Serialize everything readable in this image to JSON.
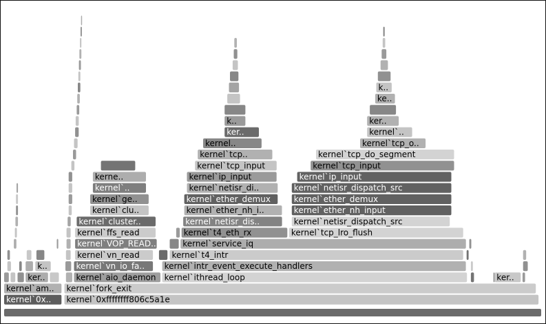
{
  "chart_data": {
    "type": "flamegraph",
    "title": "",
    "xlabel": "",
    "ylabel": "",
    "x_unit": "fraction of total samples",
    "levels": 27,
    "frames": [
      {
        "label": "",
        "start": 0.0,
        "end": 1.0,
        "level": 0,
        "tone": 0.35
      },
      {
        "label": "kernel`0x..",
        "start": 0.0,
        "end": 0.108,
        "level": 1,
        "tone": 0.28
      },
      {
        "label": "kernel`0xffffffff806c5a1e",
        "start": 0.112,
        "end": 0.995,
        "level": 1,
        "tone": 0.82
      },
      {
        "label": "kernel`am..",
        "start": 0.0,
        "end": 0.108,
        "level": 2,
        "tone": 0.72
      },
      {
        "label": "kernel`fork_exit",
        "start": 0.112,
        "end": 0.99,
        "level": 2,
        "tone": 0.86
      },
      {
        "label": "",
        "start": 0.0,
        "end": 0.01,
        "level": 3,
        "tone": 0.6
      },
      {
        "label": "",
        "start": 0.012,
        "end": 0.022,
        "level": 3,
        "tone": 0.82
      },
      {
        "label": "",
        "start": 0.025,
        "end": 0.038,
        "level": 3,
        "tone": 0.55
      },
      {
        "label": "ker..",
        "start": 0.04,
        "end": 0.083,
        "level": 3,
        "tone": 0.7
      },
      {
        "label": "",
        "start": 0.085,
        "end": 0.103,
        "level": 3,
        "tone": 0.84
      },
      {
        "label": "",
        "start": 0.115,
        "end": 0.128,
        "level": 3,
        "tone": 0.72
      },
      {
        "label": "kernel`aio_daemon",
        "start": 0.13,
        "end": 0.292,
        "level": 3,
        "tone": 0.62
      },
      {
        "label": "kernel`ithread_loop",
        "start": 0.294,
        "end": 0.862,
        "level": 3,
        "tone": 0.9
      },
      {
        "label": "",
        "start": 0.868,
        "end": 0.875,
        "level": 3,
        "tone": 0.4
      },
      {
        "label": "",
        "start": 0.91,
        "end": 0.912,
        "level": 3,
        "tone": 0.5
      },
      {
        "label": "ker..",
        "start": 0.912,
        "end": 0.962,
        "level": 3,
        "tone": 0.84
      },
      {
        "label": "",
        "start": 0.964,
        "end": 0.97,
        "level": 3,
        "tone": 0.6
      },
      {
        "label": "",
        "start": 0.006,
        "end": 0.014,
        "level": 4,
        "tone": 0.82
      },
      {
        "label": "",
        "start": 0.028,
        "end": 0.034,
        "level": 4,
        "tone": 0.5
      },
      {
        "label": "",
        "start": 0.04,
        "end": 0.055,
        "level": 4,
        "tone": 0.7
      },
      {
        "label": "k..",
        "start": 0.058,
        "end": 0.088,
        "level": 4,
        "tone": 0.82
      },
      {
        "label": "",
        "start": 0.114,
        "end": 0.126,
        "level": 4,
        "tone": 0.6
      },
      {
        "label": "kernel`vn_io_fa..",
        "start": 0.13,
        "end": 0.278,
        "level": 4,
        "tone": 0.42
      },
      {
        "label": "kernel`intr_event_execute_handlers",
        "start": 0.294,
        "end": 0.86,
        "level": 4,
        "tone": 0.72
      },
      {
        "label": "",
        "start": 0.868,
        "end": 0.873,
        "level": 4,
        "tone": 0.85
      },
      {
        "label": "",
        "start": 0.965,
        "end": 0.975,
        "level": 4,
        "tone": 0.55
      },
      {
        "label": "",
        "start": 0.006,
        "end": 0.012,
        "level": 5,
        "tone": 0.55
      },
      {
        "label": "",
        "start": 0.042,
        "end": 0.052,
        "level": 5,
        "tone": 0.84
      },
      {
        "label": "",
        "start": 0.06,
        "end": 0.076,
        "level": 5,
        "tone": 0.5
      },
      {
        "label": "",
        "start": 0.115,
        "end": 0.125,
        "level": 5,
        "tone": 0.82
      },
      {
        "label": "kernel`vn_read",
        "start": 0.132,
        "end": 0.278,
        "level": 5,
        "tone": 0.86
      },
      {
        "label": "",
        "start": 0.288,
        "end": 0.305,
        "level": 5,
        "tone": 0.35
      },
      {
        "label": "kernel`t4_intr",
        "start": 0.308,
        "end": 0.855,
        "level": 5,
        "tone": 0.86
      },
      {
        "label": "",
        "start": 0.86,
        "end": 0.865,
        "level": 5,
        "tone": 0.4
      },
      {
        "label": "",
        "start": 0.965,
        "end": 0.972,
        "level": 5,
        "tone": 0.72
      },
      {
        "label": "",
        "start": 0.018,
        "end": 0.024,
        "level": 6,
        "tone": 0.7
      },
      {
        "label": "",
        "start": 0.098,
        "end": 0.102,
        "level": 6,
        "tone": 0.6
      },
      {
        "label": "",
        "start": 0.116,
        "end": 0.125,
        "level": 6,
        "tone": 0.72
      },
      {
        "label": "kernel`VOP_READ..",
        "start": 0.132,
        "end": 0.285,
        "level": 6,
        "tone": 0.46
      },
      {
        "label": "",
        "start": 0.308,
        "end": 0.326,
        "level": 6,
        "tone": 0.5
      },
      {
        "label": "kernel`service_iq",
        "start": 0.328,
        "end": 0.86,
        "level": 6,
        "tone": 0.7
      },
      {
        "label": "",
        "start": 0.865,
        "end": 0.87,
        "level": 6,
        "tone": 0.55
      },
      {
        "label": "",
        "start": 0.02,
        "end": 0.025,
        "level": 7,
        "tone": 0.82
      },
      {
        "label": "",
        "start": 0.116,
        "end": 0.125,
        "level": 7,
        "tone": 0.82
      },
      {
        "label": "kernel`ffs_read",
        "start": 0.132,
        "end": 0.283,
        "level": 7,
        "tone": 0.86
      },
      {
        "label": "",
        "start": 0.32,
        "end": 0.328,
        "level": 7,
        "tone": 0.6
      },
      {
        "label": "kernel`t4_eth_rx",
        "start": 0.33,
        "end": 0.528,
        "level": 7,
        "tone": 0.55
      },
      {
        "label": "kernel`tcp_lro_flush",
        "start": 0.53,
        "end": 0.855,
        "level": 7,
        "tone": 0.9
      },
      {
        "label": "",
        "start": 0.021,
        "end": 0.027,
        "level": 8,
        "tone": 0.72
      },
      {
        "label": "",
        "start": 0.118,
        "end": 0.125,
        "level": 8,
        "tone": 0.65
      },
      {
        "label": "kernel`cluster..",
        "start": 0.135,
        "end": 0.283,
        "level": 8,
        "tone": 0.35
      },
      {
        "label": "kernel`netisr_dis..",
        "start": 0.333,
        "end": 0.518,
        "level": 8,
        "tone": 0.48
      },
      {
        "label": "kernel`netisr_dispatch_src",
        "start": 0.535,
        "end": 0.83,
        "level": 8,
        "tone": 0.9
      },
      {
        "label": "",
        "start": 0.022,
        "end": 0.027,
        "level": 9,
        "tone": 0.55
      },
      {
        "label": "",
        "start": 0.12,
        "end": 0.127,
        "level": 9,
        "tone": 0.82
      },
      {
        "label": "kernel`clu..",
        "start": 0.16,
        "end": 0.27,
        "level": 9,
        "tone": 0.82
      },
      {
        "label": "kernel`ether_nh_i..",
        "start": 0.335,
        "end": 0.518,
        "level": 9,
        "tone": 0.72
      },
      {
        "label": "kernel`ether_nh_input",
        "start": 0.535,
        "end": 0.833,
        "level": 9,
        "tone": 0.3
      },
      {
        "label": "",
        "start": 0.022,
        "end": 0.027,
        "level": 10,
        "tone": 0.84
      },
      {
        "label": "",
        "start": 0.12,
        "end": 0.128,
        "level": 10,
        "tone": 0.6
      },
      {
        "label": "kernel`ge..",
        "start": 0.16,
        "end": 0.27,
        "level": 10,
        "tone": 0.55
      },
      {
        "label": "kernel`ether_demux",
        "start": 0.335,
        "end": 0.51,
        "level": 10,
        "tone": 0.3
      },
      {
        "label": "kernel`ether_demux",
        "start": 0.535,
        "end": 0.833,
        "level": 10,
        "tone": 0.3
      },
      {
        "label": "",
        "start": 0.023,
        "end": 0.027,
        "level": 11,
        "tone": 0.65
      },
      {
        "label": "",
        "start": 0.12,
        "end": 0.128,
        "level": 11,
        "tone": 0.82
      },
      {
        "label": "kernel`..",
        "start": 0.165,
        "end": 0.265,
        "level": 11,
        "tone": 0.45
      },
      {
        "label": "kernel`netisr_di..",
        "start": 0.34,
        "end": 0.51,
        "level": 11,
        "tone": 0.72
      },
      {
        "label": "kernel`netisr_dispatch_src",
        "start": 0.535,
        "end": 0.833,
        "level": 11,
        "tone": 0.3
      },
      {
        "label": "",
        "start": 0.12,
        "end": 0.128,
        "level": 12,
        "tone": 0.55
      },
      {
        "label": "kerne..",
        "start": 0.165,
        "end": 0.265,
        "level": 12,
        "tone": 0.7
      },
      {
        "label": "kernel`ip_input",
        "start": 0.34,
        "end": 0.508,
        "level": 12,
        "tone": 0.6
      },
      {
        "label": "kernel`ip_input",
        "start": 0.545,
        "end": 0.833,
        "level": 12,
        "tone": 0.3
      },
      {
        "label": "",
        "start": 0.125,
        "end": 0.132,
        "level": 13,
        "tone": 0.82
      },
      {
        "label": "",
        "start": 0.18,
        "end": 0.245,
        "level": 13,
        "tone": 0.4
      },
      {
        "label": "kernel`tcp_input",
        "start": 0.355,
        "end": 0.508,
        "level": 13,
        "tone": 0.82
      },
      {
        "label": "kernel`tcp_input",
        "start": 0.57,
        "end": 0.838,
        "level": 13,
        "tone": 0.55
      },
      {
        "label": "",
        "start": 0.128,
        "end": 0.135,
        "level": 14,
        "tone": 0.6
      },
      {
        "label": "kernel`tcp..",
        "start": 0.36,
        "end": 0.5,
        "level": 14,
        "tone": 0.72
      },
      {
        "label": "kernel`tcp_do_segment",
        "start": 0.58,
        "end": 0.838,
        "level": 14,
        "tone": 0.9
      },
      {
        "label": "",
        "start": 0.13,
        "end": 0.138,
        "level": 15,
        "tone": 0.82
      },
      {
        "label": "kernel..",
        "start": 0.37,
        "end": 0.48,
        "level": 15,
        "tone": 0.5
      },
      {
        "label": "kernel`tcp_o..",
        "start": 0.662,
        "end": 0.785,
        "level": 15,
        "tone": 0.72
      },
      {
        "label": "",
        "start": 0.132,
        "end": 0.14,
        "level": 16,
        "tone": 0.55
      },
      {
        "label": "ker..",
        "start": 0.41,
        "end": 0.475,
        "level": 16,
        "tone": 0.35
      },
      {
        "label": "kernel`..",
        "start": 0.675,
        "end": 0.76,
        "level": 16,
        "tone": 0.82
      },
      {
        "label": "",
        "start": 0.133,
        "end": 0.14,
        "level": 17,
        "tone": 0.82
      },
      {
        "label": "k..",
        "start": 0.41,
        "end": 0.45,
        "level": 17,
        "tone": 0.6
      },
      {
        "label": "ker..",
        "start": 0.675,
        "end": 0.735,
        "level": 17,
        "tone": 0.72
      },
      {
        "label": "",
        "start": 0.135,
        "end": 0.141,
        "level": 18,
        "tone": 0.6
      },
      {
        "label": "",
        "start": 0.41,
        "end": 0.45,
        "level": 18,
        "tone": 0.5
      },
      {
        "label": "",
        "start": 0.68,
        "end": 0.73,
        "level": 18,
        "tone": 0.5
      },
      {
        "label": "",
        "start": 0.136,
        "end": 0.142,
        "level": 19,
        "tone": 0.72
      },
      {
        "label": "",
        "start": 0.415,
        "end": 0.44,
        "level": 19,
        "tone": 0.82
      },
      {
        "label": "ke..",
        "start": 0.69,
        "end": 0.728,
        "level": 19,
        "tone": 0.72
      },
      {
        "label": "",
        "start": 0.137,
        "end": 0.143,
        "level": 20,
        "tone": 0.5
      },
      {
        "label": "",
        "start": 0.418,
        "end": 0.438,
        "level": 20,
        "tone": 0.65
      },
      {
        "label": "k..",
        "start": 0.692,
        "end": 0.722,
        "level": 20,
        "tone": 0.82
      },
      {
        "label": "",
        "start": 0.138,
        "end": 0.143,
        "level": 21,
        "tone": 0.82
      },
      {
        "label": "",
        "start": 0.42,
        "end": 0.437,
        "level": 21,
        "tone": 0.5
      },
      {
        "label": "",
        "start": 0.695,
        "end": 0.72,
        "level": 21,
        "tone": 0.55
      },
      {
        "label": "",
        "start": 0.139,
        "end": 0.144,
        "level": 22,
        "tone": 0.6
      },
      {
        "label": "",
        "start": 0.425,
        "end": 0.436,
        "level": 22,
        "tone": 0.82
      },
      {
        "label": "",
        "start": 0.7,
        "end": 0.715,
        "level": 22,
        "tone": 0.72
      },
      {
        "label": "",
        "start": 0.14,
        "end": 0.145,
        "level": 23,
        "tone": 0.72
      },
      {
        "label": "",
        "start": 0.427,
        "end": 0.435,
        "level": 23,
        "tone": 0.55
      },
      {
        "label": "",
        "start": 0.702,
        "end": 0.712,
        "level": 23,
        "tone": 0.6
      },
      {
        "label": "",
        "start": 0.141,
        "end": 0.145,
        "level": 24,
        "tone": 0.82
      },
      {
        "label": "",
        "start": 0.428,
        "end": 0.434,
        "level": 24,
        "tone": 0.72
      },
      {
        "label": "",
        "start": 0.704,
        "end": 0.71,
        "level": 24,
        "tone": 0.82
      },
      {
        "label": "",
        "start": 0.142,
        "end": 0.146,
        "level": 25,
        "tone": 0.6
      },
      {
        "label": "",
        "start": 0.705,
        "end": 0.709,
        "level": 25,
        "tone": 0.5
      },
      {
        "label": "",
        "start": 0.143,
        "end": 0.146,
        "level": 26,
        "tone": 0.7
      }
    ]
  }
}
